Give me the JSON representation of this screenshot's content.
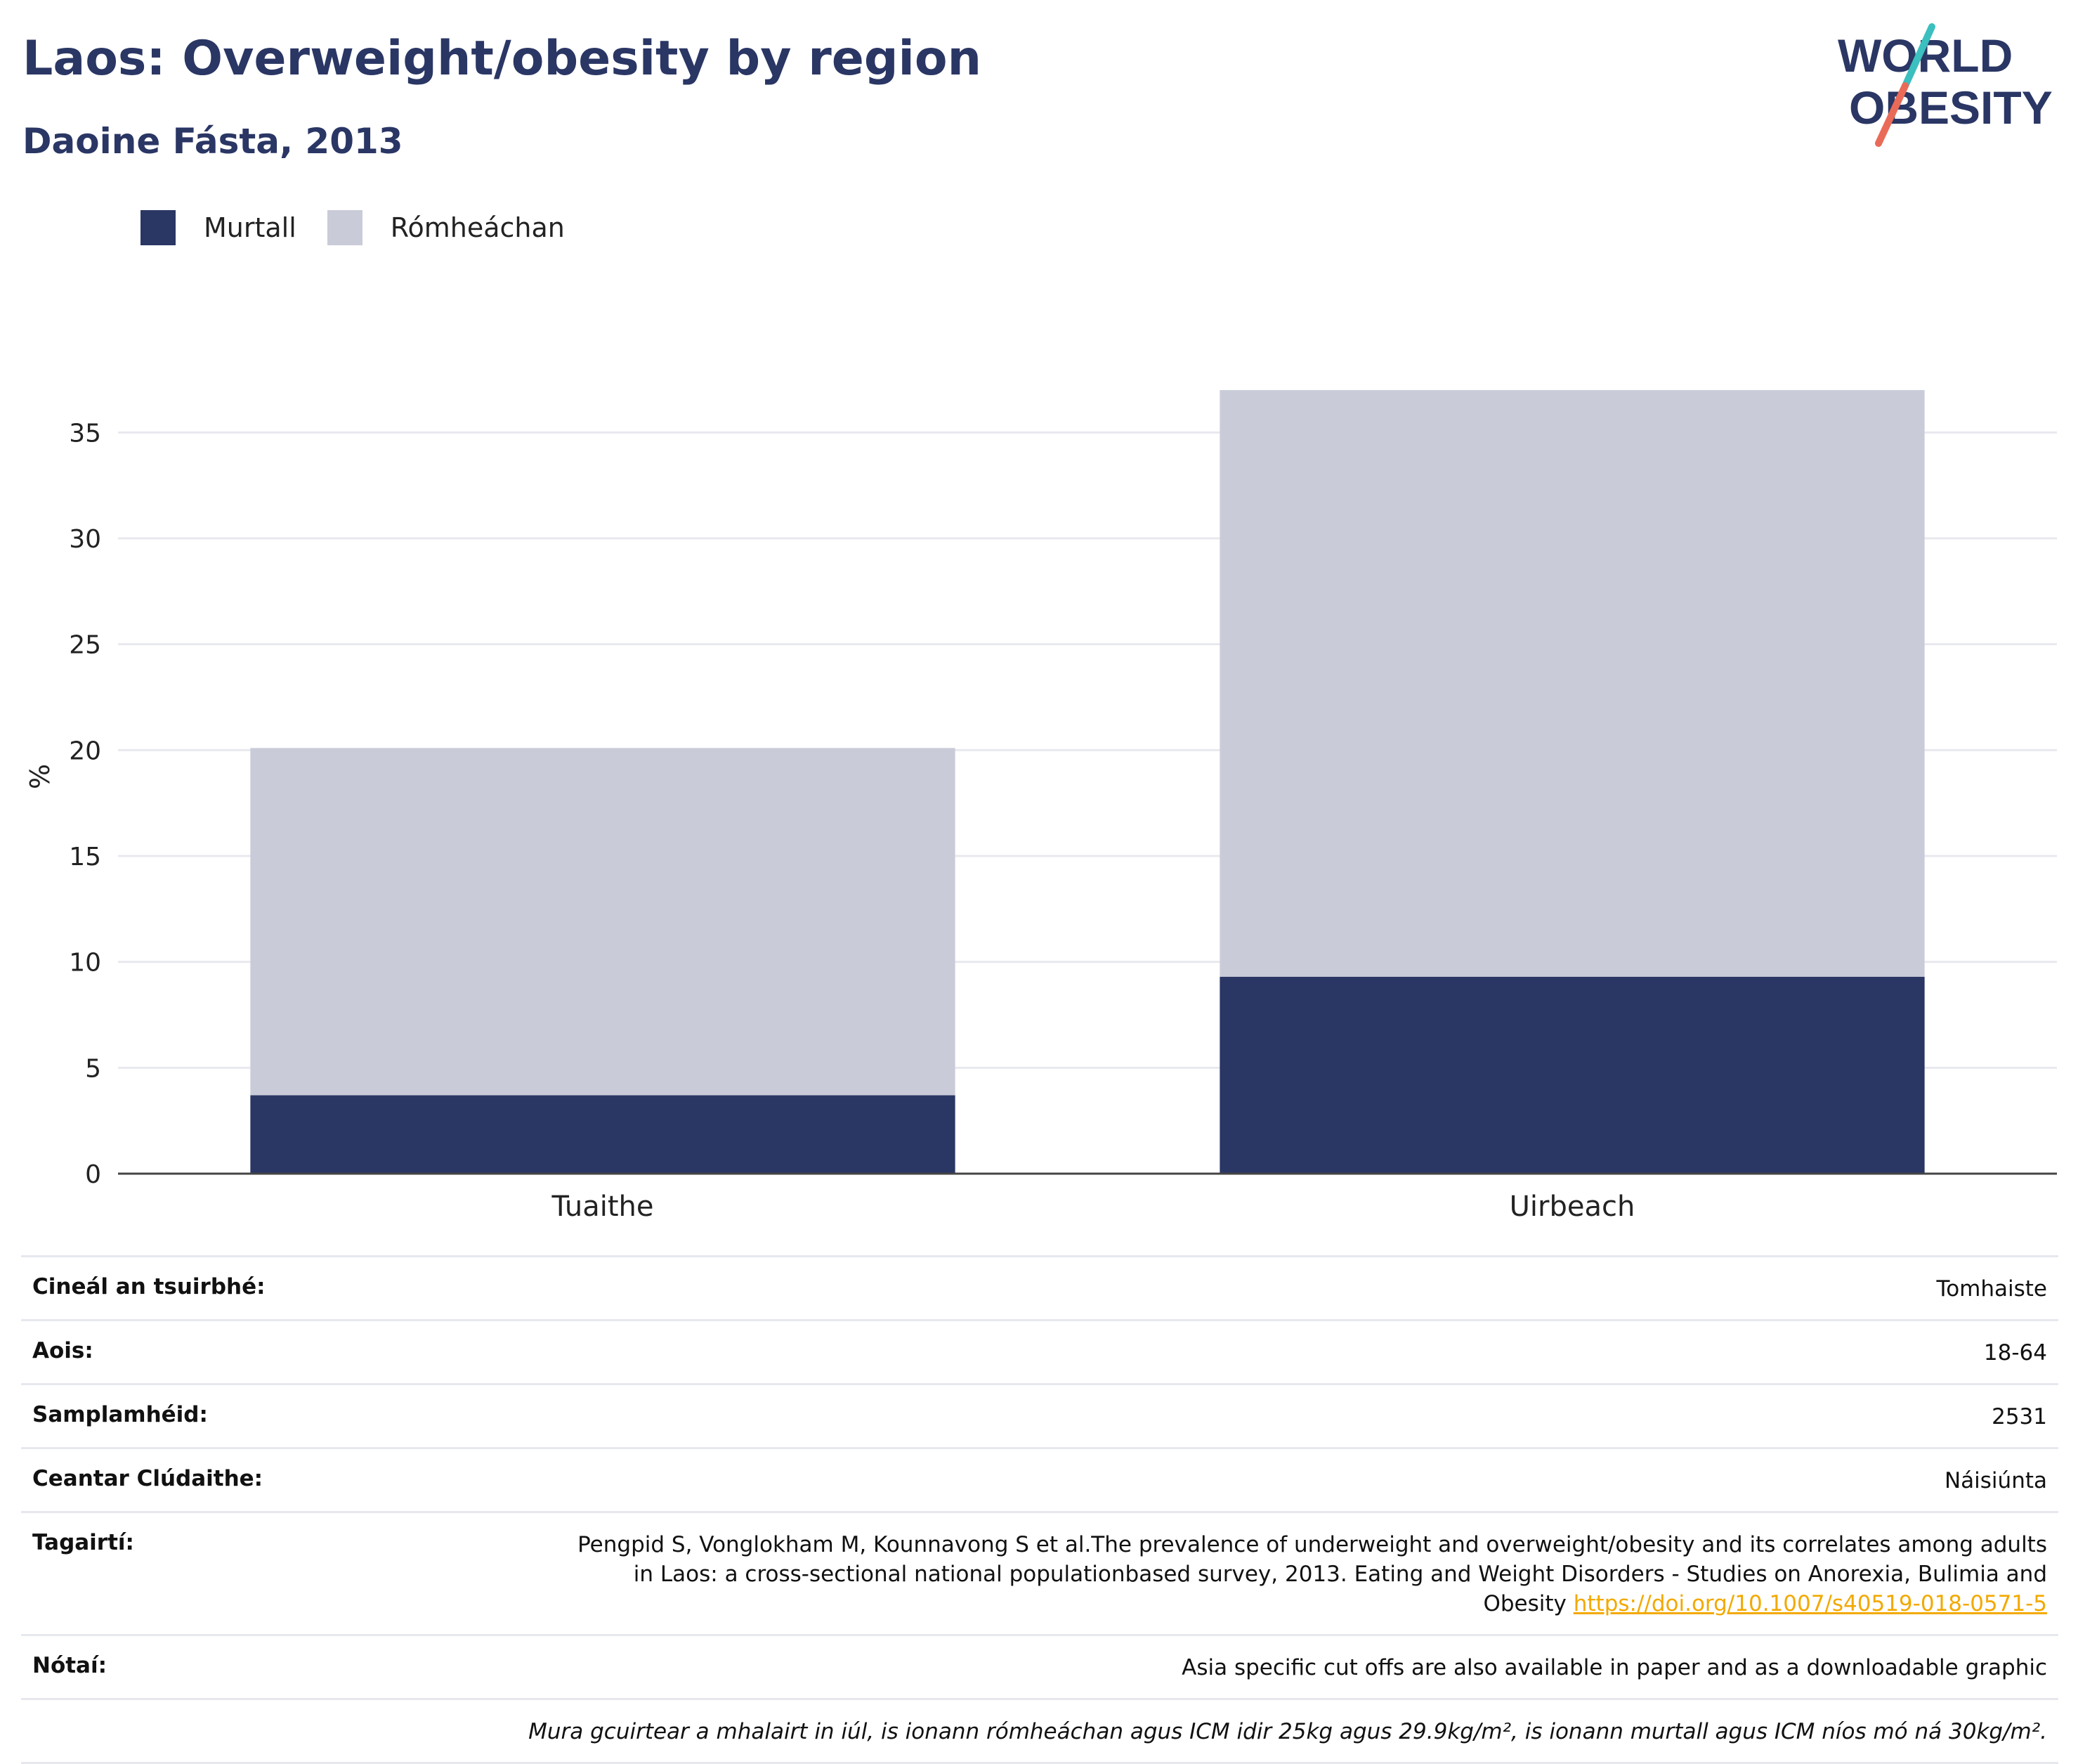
{
  "header": {
    "title": "Laos: Overweight/obesity by region",
    "subtitle": "Daoine Fásta, 2013"
  },
  "logo": {
    "line1": "WORLD",
    "line2": "OBESITY"
  },
  "legend": [
    {
      "label": "Murtall",
      "color": "#2a3664"
    },
    {
      "label": "Rómheáchan",
      "color": "#c9ccd8"
    }
  ],
  "chart_data": {
    "type": "bar",
    "stacked": true,
    "categories": [
      "Tuaithe",
      "Uirbeach"
    ],
    "series": [
      {
        "name": "Murtall",
        "values": [
          3.7,
          9.3
        ],
        "color": "#2a3664"
      },
      {
        "name": "Rómheáchan",
        "values": [
          16.4,
          27.7
        ],
        "color": "#c9ccd8"
      }
    ],
    "ylabel": "%",
    "ylim": [
      0,
      37.5
    ],
    "yticks": [
      0,
      5,
      10,
      15,
      20,
      25,
      30,
      35
    ],
    "grid": true,
    "legend_position": "top-left"
  },
  "info": {
    "survey_type": {
      "label": "Cineál an tsuirbhé:",
      "value": "Tomhaiste"
    },
    "age": {
      "label": "Aois:",
      "value": "18-64"
    },
    "sample_size": {
      "label": "Samplamhéid:",
      "value": "2531"
    },
    "coverage": {
      "label": "Ceantar Clúdaithe:",
      "value": "Náisiúnta"
    },
    "references": {
      "label": "Tagairtí:",
      "line1": "Pengpid S, Vonglokham M, Kounnavong S et al.The prevalence of underweight and overweight/obesity and its correlates among adults",
      "line2": "in Laos: a cross-sectional national populationbased survey, 2013. Eating and Weight Disorders - Studies on Anorexia, Bulimia and",
      "line3": "Obesity",
      "link": "https://doi.org/10.1007/s40519-018-0571-5"
    },
    "notes": {
      "label": "Nótaí:",
      "value": "Asia specific cut offs are also available in paper and as a downloadable graphic"
    },
    "footnote": "Mura gcuirtear a mhalairt in iúl, is ionann rómheáchan agus ICM idir 25kg agus 29.9kg/m², is ionann murtall agus ICM níos mó ná 30kg/m²."
  }
}
